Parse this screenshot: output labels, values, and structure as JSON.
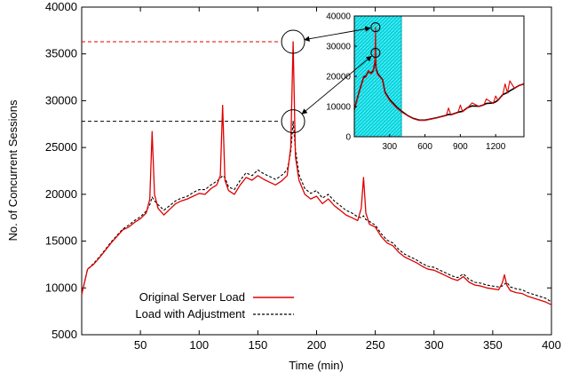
{
  "chart_data": {
    "type": "line",
    "title": "",
    "xlabel": "Time (min)",
    "ylabel": "No. of Concurrent Sessions",
    "xlim": [
      0,
      400
    ],
    "ylim": [
      5000,
      40000
    ],
    "xticks": [
      50,
      100,
      150,
      200,
      250,
      300,
      350,
      400
    ],
    "yticks": [
      5000,
      10000,
      15000,
      20000,
      25000,
      30000,
      35000,
      40000
    ],
    "grid": false,
    "legend_position": "bottom-left",
    "series": [
      {
        "name": "Original Server Load",
        "color": "#e00000",
        "style": "solid",
        "x": [
          0,
          5,
          10,
          15,
          20,
          25,
          30,
          35,
          40,
          45,
          50,
          55,
          58,
          60,
          62,
          65,
          70,
          75,
          80,
          85,
          90,
          95,
          100,
          105,
          110,
          115,
          118,
          120,
          122,
          125,
          130,
          135,
          140,
          145,
          150,
          155,
          160,
          165,
          170,
          175,
          178,
          180,
          182,
          185,
          190,
          195,
          200,
          205,
          210,
          215,
          220,
          225,
          230,
          235,
          238,
          240,
          242,
          245,
          250,
          255,
          260,
          265,
          270,
          275,
          280,
          285,
          290,
          295,
          300,
          305,
          310,
          315,
          320,
          325,
          330,
          335,
          340,
          345,
          350,
          355,
          358,
          360,
          362,
          365,
          370,
          375,
          380,
          385,
          390,
          395,
          400
        ],
        "values": [
          9300,
          12000,
          12500,
          13200,
          14000,
          14800,
          15500,
          16200,
          16500,
          17000,
          17400,
          18000,
          19500,
          26700,
          20000,
          18500,
          17800,
          18400,
          19000,
          19300,
          19500,
          19800,
          20100,
          20000,
          20600,
          21000,
          22000,
          29500,
          21500,
          20400,
          20000,
          21000,
          21800,
          21500,
          22000,
          21600,
          21300,
          21000,
          21400,
          22000,
          25000,
          36300,
          24000,
          21500,
          20000,
          19500,
          19800,
          19000,
          19500,
          18800,
          18300,
          17800,
          17500,
          17200,
          18500,
          21800,
          18000,
          16800,
          16500,
          15500,
          14800,
          14500,
          13800,
          13300,
          13000,
          12700,
          12300,
          12000,
          11900,
          11600,
          11300,
          11000,
          10800,
          11200,
          10600,
          10300,
          10200,
          10000,
          9900,
          9800,
          10500,
          11400,
          10300,
          9700,
          9500,
          9400,
          9100,
          8900,
          8700,
          8500,
          8200
        ]
      },
      {
        "name": "Load with Adjustment",
        "color": "#000000",
        "style": "dashed",
        "x": [
          0,
          5,
          10,
          15,
          20,
          25,
          30,
          35,
          40,
          45,
          50,
          55,
          58,
          60,
          62,
          65,
          70,
          75,
          80,
          85,
          90,
          95,
          100,
          105,
          110,
          115,
          118,
          120,
          122,
          125,
          130,
          135,
          140,
          145,
          150,
          155,
          160,
          165,
          170,
          175,
          178,
          180,
          182,
          185,
          190,
          195,
          200,
          205,
          210,
          215,
          220,
          225,
          230,
          235,
          238,
          240,
          242,
          245,
          250,
          255,
          260,
          265,
          270,
          275,
          280,
          285,
          290,
          295,
          300,
          305,
          310,
          315,
          320,
          325,
          330,
          335,
          340,
          345,
          350,
          355,
          358,
          360,
          362,
          365,
          370,
          375,
          380,
          385,
          390,
          395,
          400
        ],
        "values": [
          9300,
          12000,
          12600,
          13300,
          14100,
          14900,
          15600,
          16300,
          16700,
          17200,
          17600,
          18200,
          18900,
          19700,
          19300,
          18900,
          18300,
          18800,
          19300,
          19600,
          19800,
          20200,
          20500,
          20500,
          21000,
          21400,
          21700,
          22000,
          21800,
          20800,
          20500,
          21500,
          22300,
          22000,
          22600,
          22200,
          21900,
          21600,
          22000,
          22600,
          24500,
          27800,
          24800,
          22100,
          20600,
          20100,
          20400,
          19600,
          20000,
          19300,
          18800,
          18300,
          18000,
          17600,
          17500,
          17700,
          17300,
          17100,
          16700,
          15800,
          15100,
          14800,
          14100,
          13600,
          13300,
          13000,
          12600,
          12300,
          12200,
          11900,
          11600,
          11300,
          11100,
          11500,
          10900,
          10600,
          10500,
          10300,
          10200,
          10100,
          10200,
          10400,
          10600,
          10100,
          9900,
          9800,
          9500,
          9300,
          9100,
          8900,
          8500
        ]
      }
    ],
    "callouts": [
      {
        "series": "Original Server Load",
        "x": 180,
        "y": 36300,
        "color": "#e00000"
      },
      {
        "series": "Load with Adjustment",
        "x": 180,
        "y": 27800,
        "color": "#000000"
      }
    ],
    "inset": {
      "type": "line",
      "xlim": [
        0,
        1440
      ],
      "ylim": [
        0,
        40000
      ],
      "xticks": [
        300,
        600,
        900,
        1200
      ],
      "yticks": [
        0,
        10000,
        20000,
        30000,
        40000
      ],
      "highlight_range": [
        0,
        400
      ],
      "highlight_color": "#00c8d0",
      "series": [
        {
          "name": "Original Server Load",
          "color": "#e00000",
          "x": [
            0,
            40,
            80,
            100,
            120,
            140,
            160,
            175,
            180,
            185,
            200,
            240,
            260,
            300,
            360,
            400,
            450,
            500,
            550,
            600,
            700,
            780,
            800,
            820,
            880,
            900,
            920,
            960,
            1000,
            1060,
            1100,
            1120,
            1180,
            1200,
            1220,
            1260,
            1280,
            1300,
            1320,
            1360,
            1400,
            1440
          ],
          "values": [
            9000,
            14500,
            19500,
            19800,
            22000,
            20800,
            21500,
            25000,
            36300,
            22000,
            20500,
            18800,
            14500,
            12000,
            9500,
            8200,
            7000,
            6000,
            5400,
            5400,
            6200,
            7000,
            9500,
            7200,
            8000,
            10500,
            8300,
            9500,
            11200,
            10000,
            10500,
            12500,
            11000,
            13500,
            12000,
            13800,
            17500,
            14500,
            18500,
            16000,
            17000,
            17500
          ]
        },
        {
          "name": "Load with Adjustment",
          "color": "#000000",
          "x": [
            0,
            40,
            80,
            100,
            120,
            140,
            160,
            175,
            180,
            185,
            200,
            240,
            260,
            300,
            360,
            400,
            450,
            500,
            550,
            600,
            700,
            780,
            800,
            820,
            880,
            900,
            920,
            960,
            1000,
            1060,
            1100,
            1120,
            1180,
            1200,
            1220,
            1260,
            1280,
            1300,
            1320,
            1360,
            1400,
            1440
          ],
          "values": [
            9000,
            14700,
            19800,
            20200,
            21700,
            21000,
            21800,
            24500,
            27800,
            22500,
            20800,
            18900,
            14800,
            12300,
            9800,
            8500,
            7100,
            6100,
            5500,
            5500,
            6300,
            7100,
            7400,
            7300,
            8100,
            8300,
            8400,
            9600,
            10200,
            10100,
            10600,
            11000,
            11200,
            11600,
            12100,
            13900,
            14300,
            14600,
            15200,
            16100,
            17000,
            17500
          ]
        }
      ]
    }
  }
}
